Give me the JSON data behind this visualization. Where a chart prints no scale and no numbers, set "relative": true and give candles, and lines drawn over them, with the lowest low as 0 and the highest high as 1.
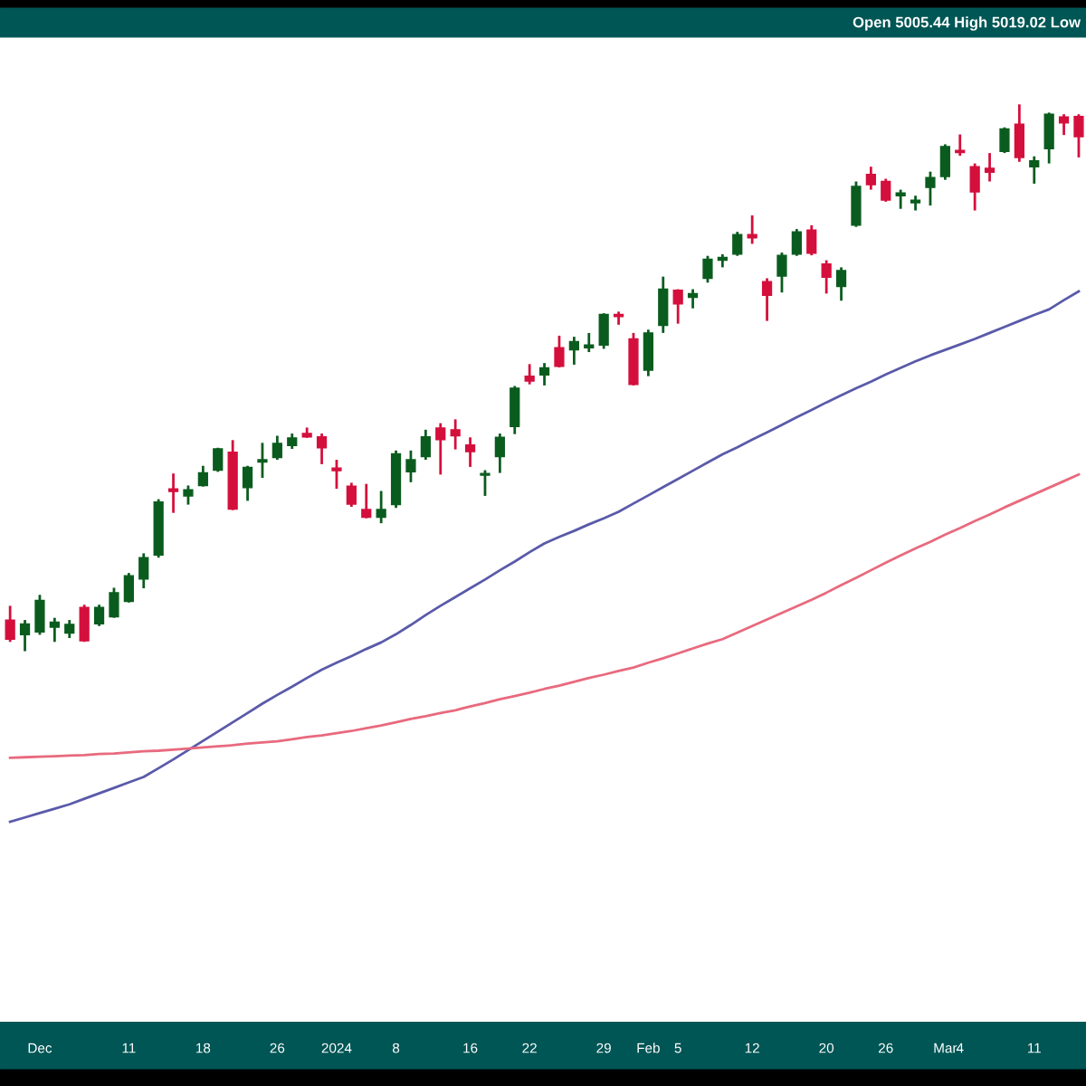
{
  "chart_data": {
    "type": "candlestick",
    "relative": true,
    "annotations": [
      "Open 5005.44 High 5019.02 Low"
    ],
    "categories": [
      null,
      null,
      "Dec",
      null,
      null,
      null,
      null,
      null,
      "11",
      null,
      null,
      null,
      null,
      "18",
      null,
      null,
      null,
      null,
      "26",
      null,
      null,
      null,
      "2024",
      null,
      null,
      null,
      "8",
      null,
      null,
      null,
      null,
      "16",
      null,
      null,
      null,
      "22",
      null,
      null,
      null,
      null,
      "29",
      null,
      null,
      "Feb",
      null,
      "5",
      null,
      null,
      null,
      null,
      "12",
      null,
      null,
      null,
      null,
      "20",
      null,
      null,
      null,
      "26",
      null,
      null,
      null,
      "Mar",
      "4",
      null,
      null,
      null,
      null,
      "11",
      null,
      null,
      null
    ],
    "ohlc": [
      [
        0.057,
        0.083,
        0.017,
        0.022
      ],
      [
        0.03,
        0.057,
        0.0,
        0.05
      ],
      [
        0.035,
        0.103,
        0.03,
        0.093
      ],
      [
        0.044,
        0.061,
        0.017,
        0.053
      ],
      [
        0.033,
        0.057,
        0.024,
        0.049
      ],
      [
        0.08,
        0.085,
        0.017,
        0.019
      ],
      [
        0.05,
        0.085,
        0.046,
        0.08
      ],
      [
        0.063,
        0.116,
        0.061,
        0.107
      ],
      [
        0.091,
        0.143,
        0.089,
        0.138
      ],
      [
        0.132,
        0.179,
        0.115,
        0.171
      ],
      [
        0.176,
        0.278,
        0.171,
        0.273
      ],
      [
        0.297,
        0.325,
        0.253,
        0.292
      ],
      [
        0.284,
        0.303,
        0.268,
        0.295
      ],
      [
        0.303,
        0.339,
        0.301,
        0.326
      ],
      [
        0.331,
        0.372,
        0.328,
        0.37
      ],
      [
        0.364,
        0.386,
        0.258,
        0.26
      ],
      [
        0.299,
        0.339,
        0.275,
        0.336
      ],
      [
        0.346,
        0.381,
        0.317,
        0.35
      ],
      [
        0.354,
        0.394,
        0.35,
        0.38
      ],
      [
        0.376,
        0.398,
        0.37,
        0.39
      ],
      [
        0.398,
        0.409,
        0.39,
        0.392
      ],
      [
        0.392,
        0.398,
        0.342,
        0.372
      ],
      [
        0.335,
        0.35,
        0.297,
        0.33
      ],
      [
        0.302,
        0.308,
        0.264,
        0.269
      ],
      [
        0.259,
        0.306,
        0.243,
        0.245
      ],
      [
        0.245,
        0.293,
        0.234,
        0.259
      ],
      [
        0.268,
        0.367,
        0.262,
        0.361
      ],
      [
        0.328,
        0.367,
        0.309,
        0.35
      ],
      [
        0.356,
        0.405,
        0.35,
        0.392
      ],
      [
        0.408,
        0.417,
        0.323,
        0.387
      ],
      [
        0.405,
        0.424,
        0.369,
        0.394
      ],
      [
        0.377,
        0.391,
        0.337,
        0.365
      ],
      [
        0.322,
        0.331,
        0.284,
        0.325
      ],
      [
        0.356,
        0.398,
        0.326,
        0.391
      ],
      [
        0.411,
        0.485,
        0.397,
        0.481
      ],
      [
        0.503,
        0.525,
        0.488,
        0.494
      ],
      [
        0.505,
        0.527,
        0.486,
        0.518
      ],
      [
        0.555,
        0.577,
        0.519,
        0.521
      ],
      [
        0.551,
        0.575,
        0.524,
        0.566
      ],
      [
        0.555,
        0.582,
        0.547,
        0.56
      ],
      [
        0.56,
        0.618,
        0.553,
        0.616
      ],
      [
        0.616,
        0.621,
        0.597,
        0.612
      ],
      [
        0.571,
        0.582,
        0.486,
        0.488
      ],
      [
        0.514,
        0.588,
        0.503,
        0.582
      ],
      [
        0.596,
        0.685,
        0.582,
        0.662
      ],
      [
        0.66,
        0.662,
        0.599,
        0.635
      ],
      [
        0.647,
        0.662,
        0.627,
        0.654
      ],
      [
        0.682,
        0.723,
        0.674,
        0.717
      ],
      [
        0.715,
        0.726,
        0.702,
        0.72
      ],
      [
        0.726,
        0.767,
        0.723,
        0.762
      ],
      [
        0.762,
        0.797,
        0.745,
        0.756
      ],
      [
        0.676,
        0.682,
        0.604,
        0.651
      ],
      [
        0.686,
        0.729,
        0.656,
        0.724
      ],
      [
        0.726,
        0.772,
        0.723,
        0.767
      ],
      [
        0.77,
        0.779,
        0.724,
        0.728
      ],
      [
        0.708,
        0.715,
        0.654,
        0.684
      ],
      [
        0.667,
        0.702,
        0.641,
        0.696
      ],
      [
        0.779,
        0.859,
        0.776,
        0.85
      ],
      [
        0.872,
        0.886,
        0.844,
        0.853
      ],
      [
        0.859,
        0.864,
        0.822,
        0.825
      ],
      [
        0.833,
        0.844,
        0.809,
        0.838
      ],
      [
        0.82,
        0.833,
        0.806,
        0.825
      ],
      [
        0.848,
        0.877,
        0.815,
        0.866
      ],
      [
        0.868,
        0.927,
        0.862,
        0.923
      ],
      [
        0.916,
        0.945,
        0.906,
        0.912
      ],
      [
        0.886,
        0.892,
        0.806,
        0.84
      ],
      [
        0.883,
        0.911,
        0.859,
        0.876
      ],
      [
        0.914,
        0.958,
        0.911,
        0.955
      ],
      [
        0.964,
        1.0,
        0.895,
        0.903
      ],
      [
        0.886,
        0.905,
        0.855,
        0.897
      ],
      [
        0.919,
        0.985,
        0.892,
        0.982
      ],
      [
        0.977,
        0.982,
        0.944,
        0.966
      ],
      [
        0.978,
        0.982,
        0.903,
        0.941
      ]
    ],
    "colors": [
      "#d40f3c",
      "#0a5c1e",
      "#0a5c1e",
      "#0a5c1e",
      "#0a5c1e",
      "#d40f3c",
      "#0a5c1e",
      "#0a5c1e",
      "#0a5c1e",
      "#0a5c1e",
      "#0a5c1e",
      "#d40f3c",
      "#0a5c1e",
      "#0a5c1e",
      "#0a5c1e",
      "#d40f3c",
      "#0a5c1e",
      "#0a5c1e",
      "#0a5c1e",
      "#0a5c1e",
      "#d40f3c",
      "#d40f3c",
      "#d40f3c",
      "#d40f3c",
      "#d40f3c",
      "#0a5c1e",
      "#0a5c1e",
      "#0a5c1e",
      "#0a5c1e",
      "#d40f3c",
      "#d40f3c",
      "#d40f3c",
      "#0a5c1e",
      "#0a5c1e",
      "#0a5c1e",
      "#d40f3c",
      "#0a5c1e",
      "#d40f3c",
      "#0a5c1e",
      "#0a5c1e",
      "#0a5c1e",
      "#d40f3c",
      "#d40f3c",
      "#0a5c1e",
      "#0a5c1e",
      "#d40f3c",
      "#0a5c1e",
      "#0a5c1e",
      "#0a5c1e",
      "#0a5c1e",
      "#d40f3c",
      "#d40f3c",
      "#0a5c1e",
      "#0a5c1e",
      "#d40f3c",
      "#d40f3c",
      "#0a5c1e",
      "#0a5c1e",
      "#d40f3c",
      "#d40f3c",
      "#0a5c1e",
      "#0a5c1e",
      "#0a5c1e",
      "#0a5c1e",
      "#d40f3c",
      "#d40f3c",
      "#d40f3c",
      "#0a5c1e",
      "#d40f3c",
      "#0a5c1e",
      "#0a5c1e",
      "#d40f3c",
      "#d40f3c"
    ],
    "series": [
      {
        "type": "line",
        "color": "#5a5aaa",
        "values": [
          -0.312,
          -0.304,
          -0.296,
          -0.288,
          -0.28,
          -0.27,
          -0.26,
          -0.25,
          -0.24,
          -0.23,
          -0.214,
          -0.198,
          -0.181,
          -0.164,
          -0.147,
          -0.13,
          -0.113,
          -0.096,
          -0.08,
          -0.065,
          -0.049,
          -0.034,
          -0.021,
          -0.009,
          0.004,
          0.016,
          0.031,
          0.048,
          0.066,
          0.083,
          0.099,
          0.115,
          0.131,
          0.148,
          0.164,
          0.181,
          0.197,
          0.209,
          0.22,
          0.232,
          0.243,
          0.255,
          0.27,
          0.285,
          0.3,
          0.315,
          0.33,
          0.345,
          0.36,
          0.373,
          0.387,
          0.4,
          0.414,
          0.428,
          0.441,
          0.455,
          0.468,
          0.481,
          0.493,
          0.506,
          0.518,
          0.53,
          0.541,
          0.551,
          0.561,
          0.571,
          0.582,
          0.593,
          0.604,
          0.615,
          0.625,
          0.642,
          0.658
        ]
      },
      {
        "type": "line",
        "color": "#e86a7e",
        "values": [
          -0.195,
          -0.194,
          -0.193,
          -0.192,
          -0.191,
          -0.19,
          -0.188,
          -0.187,
          -0.185,
          -0.183,
          -0.182,
          -0.18,
          -0.178,
          -0.176,
          -0.174,
          -0.172,
          -0.169,
          -0.167,
          -0.165,
          -0.161,
          -0.157,
          -0.154,
          -0.15,
          -0.146,
          -0.141,
          -0.136,
          -0.13,
          -0.124,
          -0.119,
          -0.113,
          -0.108,
          -0.101,
          -0.095,
          -0.088,
          -0.082,
          -0.076,
          -0.069,
          -0.063,
          -0.056,
          -0.049,
          -0.043,
          -0.036,
          -0.03,
          -0.021,
          -0.013,
          -0.004,
          0.005,
          0.014,
          0.022,
          0.034,
          0.046,
          0.058,
          0.07,
          0.082,
          0.094,
          0.107,
          0.121,
          0.134,
          0.148,
          0.162,
          0.175,
          0.188,
          0.2,
          0.213,
          0.225,
          0.238,
          0.25,
          0.263,
          0.275,
          0.287,
          0.299,
          0.311,
          0.323
        ]
      }
    ]
  }
}
